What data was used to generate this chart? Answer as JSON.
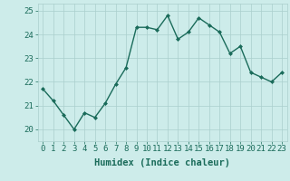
{
  "x": [
    0,
    1,
    2,
    3,
    4,
    5,
    6,
    7,
    8,
    9,
    10,
    11,
    12,
    13,
    14,
    15,
    16,
    17,
    18,
    19,
    20,
    21,
    22,
    23
  ],
  "y": [
    21.7,
    21.2,
    20.6,
    20.0,
    20.7,
    20.5,
    21.1,
    21.9,
    22.6,
    24.3,
    24.3,
    24.2,
    24.8,
    23.8,
    24.1,
    24.7,
    24.4,
    24.1,
    23.2,
    23.5,
    22.4,
    22.2,
    22.0,
    22.4
  ],
  "line_color": "#1a6b5a",
  "marker": "D",
  "marker_size": 2.0,
  "bg_color": "#cdecea",
  "grid_color": "#aacfcc",
  "xlabel": "Humidex (Indice chaleur)",
  "ylim": [
    19.5,
    25.3
  ],
  "xlim": [
    -0.5,
    23.5
  ],
  "yticks": [
    20,
    21,
    22,
    23,
    24,
    25
  ],
  "xtick_labels": [
    "0",
    "1",
    "2",
    "3",
    "4",
    "5",
    "6",
    "7",
    "8",
    "9",
    "10",
    "11",
    "12",
    "13",
    "14",
    "15",
    "16",
    "17",
    "18",
    "19",
    "20",
    "21",
    "22",
    "23"
  ],
  "xlabel_fontsize": 7.5,
  "tick_fontsize": 6.5,
  "linewidth": 1.0
}
